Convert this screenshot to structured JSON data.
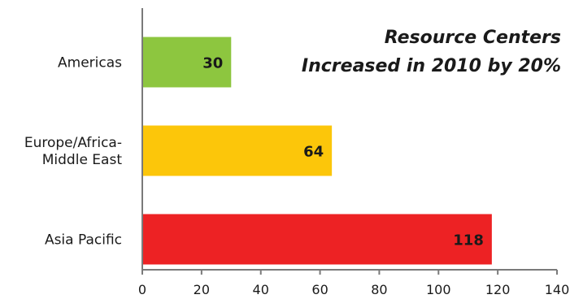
{
  "chart_data": {
    "type": "bar",
    "orientation": "horizontal",
    "title_lines": [
      "Resource Centers",
      "Increased in 2010 by 20%"
    ],
    "categories": [
      {
        "lines": [
          "Americas"
        ]
      },
      {
        "lines": [
          "Europe/Africa-",
          "Middle East"
        ]
      },
      {
        "lines": [
          "Asia Pacific"
        ]
      }
    ],
    "values": [
      30,
      64,
      118
    ],
    "value_labels": [
      "30",
      "64",
      "118"
    ],
    "colors": [
      "#8dc63f",
      "#fcc60a",
      "#ed2224"
    ],
    "xlim": [
      0,
      140
    ],
    "x_ticks": [
      0,
      20,
      40,
      60,
      80,
      100,
      120,
      140
    ],
    "x_tick_labels": [
      "0",
      "20",
      "40",
      "60",
      "80",
      "100",
      "120",
      "140"
    ],
    "grid": false,
    "legend": "none",
    "axis_color": "#7a7a7a"
  }
}
